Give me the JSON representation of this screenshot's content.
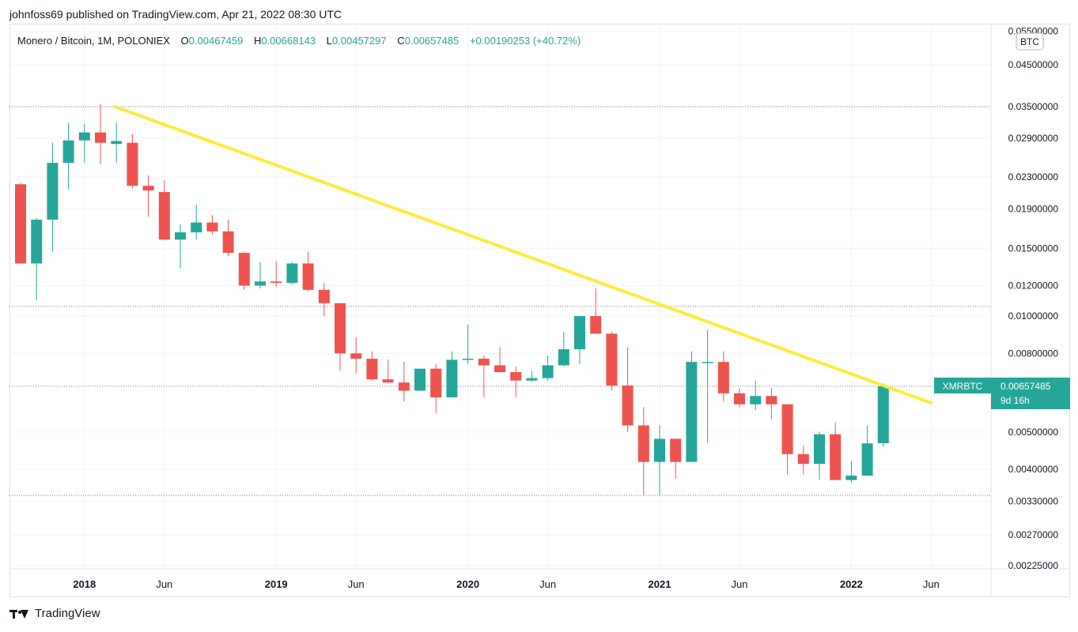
{
  "header": {
    "published_line": "johnfoss69 published on TradingView.com, Apr 21, 2022 08:30 UTC"
  },
  "legend": {
    "symbol_line": "Monero / Bitcoin, 1M, POLONIEX",
    "open_label": "O",
    "open_value": "0.00467459",
    "high_label": "H",
    "high_value": "0.00668143",
    "low_label": "L",
    "low_value": "0.00457297",
    "close_label": "C",
    "close_value": "0.00657485",
    "change_value": "+0.00190253 (+40.72%)"
  },
  "currency_badge": "BTC",
  "price_tag": {
    "symbol": "XMRBTC",
    "price": "0.00657485",
    "countdown": "9d 16h"
  },
  "footer": {
    "brand": "TradingView"
  },
  "colors": {
    "up": "#26a69a",
    "down": "#ef5350",
    "trendline": "#ffeb3b",
    "grid": "#f0f3fa",
    "text": "#131722"
  },
  "chart_data": {
    "type": "candlestick",
    "symbol": "XMRBTC",
    "interval": "1M",
    "scale": "log",
    "y_ticks": [
      "0.05500000",
      "0.04500000",
      "0.03500000",
      "0.02900000",
      "0.02300000",
      "0.01900000",
      "0.01500000",
      "0.01200000",
      "0.01000000",
      "0.00800000",
      "0.00657485",
      "0.00500000",
      "0.00400000",
      "0.00330000",
      "0.00270000",
      "0.00225000"
    ],
    "x_ticks": [
      {
        "label": "2018",
        "date": "2018-01",
        "bold": true
      },
      {
        "label": "Jun",
        "date": "2018-06",
        "bold": false
      },
      {
        "label": "2019",
        "date": "2019-01",
        "bold": true
      },
      {
        "label": "Jun",
        "date": "2019-06",
        "bold": false
      },
      {
        "label": "2020",
        "date": "2020-01",
        "bold": true
      },
      {
        "label": "Jun",
        "date": "2020-06",
        "bold": false
      },
      {
        "label": "2021",
        "date": "2021-01",
        "bold": true
      },
      {
        "label": "Jun",
        "date": "2021-06",
        "bold": false
      },
      {
        "label": "2022",
        "date": "2022-01",
        "bold": true
      },
      {
        "label": "Jun",
        "date": "2022-06",
        "bold": false
      }
    ],
    "horizontal_levels": [
      0.035,
      0.0106,
      0.00657485,
      0.00342
    ],
    "trendline": {
      "start": {
        "date": "2018-03",
        "price": 0.035
      },
      "end": {
        "date": "2022-06",
        "price": 0.00595
      }
    },
    "candles": [
      {
        "date": "2017-09",
        "o": 0.022,
        "h": 0.0222,
        "l": 0.0137,
        "c": 0.0137
      },
      {
        "date": "2017-10",
        "o": 0.0137,
        "h": 0.018,
        "l": 0.011,
        "c": 0.0178
      },
      {
        "date": "2017-11",
        "o": 0.0178,
        "h": 0.0282,
        "l": 0.0147,
        "c": 0.025
      },
      {
        "date": "2017-12",
        "o": 0.025,
        "h": 0.0318,
        "l": 0.0213,
        "c": 0.0286
      },
      {
        "date": "2018-01",
        "o": 0.0286,
        "h": 0.0316,
        "l": 0.025,
        "c": 0.03
      },
      {
        "date": "2018-02",
        "o": 0.03,
        "h": 0.0355,
        "l": 0.0248,
        "c": 0.0282
      },
      {
        "date": "2018-03",
        "o": 0.028,
        "h": 0.0318,
        "l": 0.025,
        "c": 0.0285
      },
      {
        "date": "2018-04",
        "o": 0.0282,
        "h": 0.0297,
        "l": 0.0215,
        "c": 0.0218
      },
      {
        "date": "2018-05",
        "o": 0.0218,
        "h": 0.0232,
        "l": 0.0181,
        "c": 0.0212
      },
      {
        "date": "2018-06",
        "o": 0.021,
        "h": 0.0225,
        "l": 0.0158,
        "c": 0.0158
      },
      {
        "date": "2018-07",
        "o": 0.0158,
        "h": 0.0173,
        "l": 0.0133,
        "c": 0.0165
      },
      {
        "date": "2018-08",
        "o": 0.0165,
        "h": 0.0195,
        "l": 0.0158,
        "c": 0.0175
      },
      {
        "date": "2018-09",
        "o": 0.0175,
        "h": 0.0183,
        "l": 0.0163,
        "c": 0.0166
      },
      {
        "date": "2018-10",
        "o": 0.0166,
        "h": 0.0178,
        "l": 0.0143,
        "c": 0.0146
      },
      {
        "date": "2018-11",
        "o": 0.0146,
        "h": 0.0147,
        "l": 0.0117,
        "c": 0.012
      },
      {
        "date": "2018-12",
        "o": 0.012,
        "h": 0.0138,
        "l": 0.0118,
        "c": 0.0123
      },
      {
        "date": "2019-01",
        "o": 0.0123,
        "h": 0.0139,
        "l": 0.0119,
        "c": 0.0122
      },
      {
        "date": "2019-02",
        "o": 0.0122,
        "h": 0.0138,
        "l": 0.0121,
        "c": 0.0137
      },
      {
        "date": "2019-03",
        "o": 0.0137,
        "h": 0.0147,
        "l": 0.0116,
        "c": 0.0117
      },
      {
        "date": "2019-04",
        "o": 0.0117,
        "h": 0.0122,
        "l": 0.01,
        "c": 0.0108
      },
      {
        "date": "2019-05",
        "o": 0.0108,
        "h": 0.0108,
        "l": 0.0072,
        "c": 0.008
      },
      {
        "date": "2019-06",
        "o": 0.008,
        "h": 0.0088,
        "l": 0.0071,
        "c": 0.00775
      },
      {
        "date": "2019-07",
        "o": 0.00775,
        "h": 0.0081,
        "l": 0.0068,
        "c": 0.00685
      },
      {
        "date": "2019-08",
        "o": 0.00685,
        "h": 0.0077,
        "l": 0.0067,
        "c": 0.00672
      },
      {
        "date": "2019-09",
        "o": 0.00672,
        "h": 0.0076,
        "l": 0.006,
        "c": 0.0064
      },
      {
        "date": "2019-10",
        "o": 0.0064,
        "h": 0.0073,
        "l": 0.0064,
        "c": 0.0073
      },
      {
        "date": "2019-11",
        "o": 0.0073,
        "h": 0.0075,
        "l": 0.0056,
        "c": 0.00615
      },
      {
        "date": "2019-12",
        "o": 0.00615,
        "h": 0.0081,
        "l": 0.00615,
        "c": 0.0077
      },
      {
        "date": "2020-01",
        "o": 0.0077,
        "h": 0.0095,
        "l": 0.0075,
        "c": 0.00775
      },
      {
        "date": "2020-02",
        "o": 0.00775,
        "h": 0.0079,
        "l": 0.00615,
        "c": 0.00745
      },
      {
        "date": "2020-03",
        "o": 0.00745,
        "h": 0.0083,
        "l": 0.00715,
        "c": 0.00715
      },
      {
        "date": "2020-04",
        "o": 0.00715,
        "h": 0.0074,
        "l": 0.00615,
        "c": 0.0068
      },
      {
        "date": "2020-05",
        "o": 0.0068,
        "h": 0.0072,
        "l": 0.00675,
        "c": 0.0069
      },
      {
        "date": "2020-06",
        "o": 0.0069,
        "h": 0.0079,
        "l": 0.0068,
        "c": 0.00745
      },
      {
        "date": "2020-07",
        "o": 0.00745,
        "h": 0.0091,
        "l": 0.0074,
        "c": 0.0082
      },
      {
        "date": "2020-08",
        "o": 0.0082,
        "h": 0.0099,
        "l": 0.0075,
        "c": 0.01
      },
      {
        "date": "2020-09",
        "o": 0.01,
        "h": 0.0118,
        "l": 0.0093,
        "c": 0.009
      },
      {
        "date": "2020-10",
        "o": 0.009,
        "h": 0.0091,
        "l": 0.0064,
        "c": 0.0066
      },
      {
        "date": "2020-11",
        "o": 0.0066,
        "h": 0.0083,
        "l": 0.005,
        "c": 0.0052
      },
      {
        "date": "2020-12",
        "o": 0.0052,
        "h": 0.0058,
        "l": 0.00342,
        "c": 0.00418
      },
      {
        "date": "2021-01",
        "o": 0.00418,
        "h": 0.0052,
        "l": 0.00342,
        "c": 0.0048
      },
      {
        "date": "2021-02",
        "o": 0.0048,
        "h": 0.0048,
        "l": 0.00378,
        "c": 0.00418
      },
      {
        "date": "2021-03",
        "o": 0.00418,
        "h": 0.0081,
        "l": 0.00418,
        "c": 0.0076
      },
      {
        "date": "2021-04",
        "o": 0.0076,
        "h": 0.0092,
        "l": 0.0047,
        "c": 0.0076
      },
      {
        "date": "2021-05",
        "o": 0.0076,
        "h": 0.0081,
        "l": 0.006,
        "c": 0.0063
      },
      {
        "date": "2021-06",
        "o": 0.0063,
        "h": 0.0065,
        "l": 0.0058,
        "c": 0.0059
      },
      {
        "date": "2021-07",
        "o": 0.0059,
        "h": 0.0068,
        "l": 0.0057,
        "c": 0.0062
      },
      {
        "date": "2021-08",
        "o": 0.0062,
        "h": 0.0065,
        "l": 0.0054,
        "c": 0.0059
      },
      {
        "date": "2021-09",
        "o": 0.0059,
        "h": 0.0059,
        "l": 0.00388,
        "c": 0.00438
      },
      {
        "date": "2021-10",
        "o": 0.00438,
        "h": 0.0046,
        "l": 0.00388,
        "c": 0.00413
      },
      {
        "date": "2021-11",
        "o": 0.00413,
        "h": 0.005,
        "l": 0.00376,
        "c": 0.00493
      },
      {
        "date": "2021-12",
        "o": 0.00493,
        "h": 0.0053,
        "l": 0.00375,
        "c": 0.00375
      },
      {
        "date": "2022-01",
        "o": 0.00375,
        "h": 0.0042,
        "l": 0.0037,
        "c": 0.00385
      },
      {
        "date": "2022-02",
        "o": 0.00385,
        "h": 0.0052,
        "l": 0.00385,
        "c": 0.00467
      },
      {
        "date": "2022-03",
        "o": 0.00467459,
        "h": 0.00668143,
        "l": 0.00457297,
        "c": 0.00657485
      }
    ]
  }
}
